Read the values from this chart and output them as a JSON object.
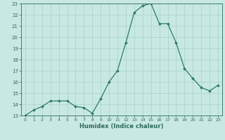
{
  "x": [
    0,
    1,
    2,
    3,
    4,
    5,
    6,
    7,
    8,
    9,
    10,
    11,
    12,
    13,
    14,
    15,
    16,
    17,
    18,
    19,
    20,
    21,
    22,
    23
  ],
  "y": [
    13.0,
    13.5,
    13.8,
    14.3,
    14.3,
    14.3,
    13.8,
    13.7,
    13.2,
    14.5,
    16.0,
    17.0,
    19.5,
    22.2,
    22.8,
    23.0,
    21.2,
    21.2,
    19.5,
    17.2,
    16.3,
    15.5,
    15.2,
    15.7
  ],
  "line_color": "#2d7a65",
  "marker": "D",
  "marker_size": 2.0,
  "bg_color": "#c8e8e4",
  "grid_color": "#a8d0cc",
  "axis_label_color": "#2d6b5a",
  "tick_color": "#2d6b5a",
  "xlabel": "Humidex (Indice chaleur)",
  "ylim": [
    13,
    23
  ],
  "xlim_min": -0.5,
  "xlim_max": 23.5,
  "yticks": [
    13,
    14,
    15,
    16,
    17,
    18,
    19,
    20,
    21,
    22,
    23
  ],
  "xticks": [
    0,
    1,
    2,
    3,
    4,
    5,
    6,
    7,
    8,
    9,
    10,
    11,
    12,
    13,
    14,
    15,
    16,
    17,
    18,
    19,
    20,
    21,
    22,
    23
  ]
}
